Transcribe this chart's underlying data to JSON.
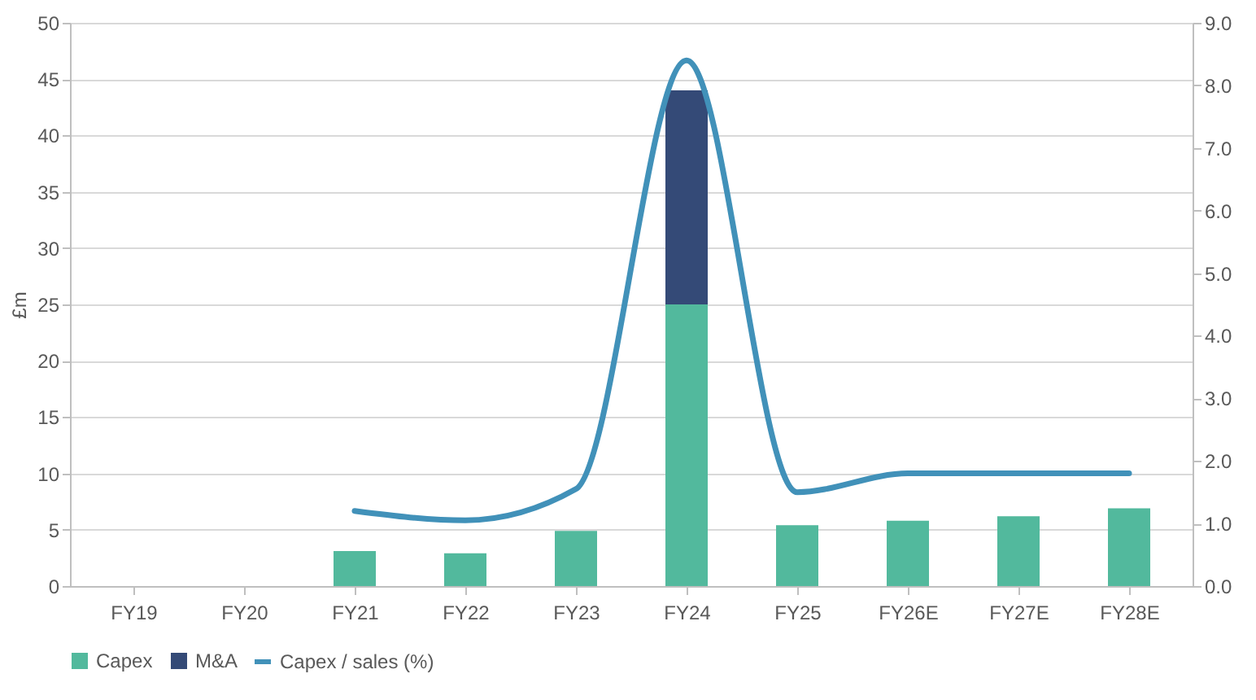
{
  "chart_data": {
    "type": "bar",
    "stacked": true,
    "ylabel": "£m",
    "categories": [
      "FY19",
      "FY20",
      "FY21",
      "FY22",
      "FY23",
      "FY24",
      "FY25",
      "FY26E",
      "FY27E",
      "FY28E"
    ],
    "series": [
      {
        "name": "Capex",
        "color": "#52b99d",
        "values": [
          0,
          0,
          3.1,
          2.9,
          4.9,
          25,
          5.4,
          5.8,
          6.2,
          6.9
        ]
      },
      {
        "name": "M&A",
        "color": "#344a77",
        "values": [
          null,
          null,
          null,
          null,
          null,
          19,
          null,
          null,
          null,
          null
        ]
      },
      {
        "name": "Capex  / sales (%)",
        "type": "line",
        "axis": "y2",
        "color": "#4191b9",
        "marker": "none",
        "line_style": "solid",
        "values": [
          null,
          null,
          1.2,
          1.05,
          1.55,
          8.4,
          1.5,
          1.8,
          1.8,
          1.8
        ]
      }
    ],
    "ylim": [
      0,
      50
    ],
    "yticks": [
      0,
      5,
      10,
      15,
      20,
      25,
      30,
      35,
      40,
      45,
      50
    ],
    "y2lim": [
      0,
      9
    ],
    "y2ticks": [
      {
        "value": 0,
        "label": "0.0"
      },
      {
        "value": 1,
        "label": "1.0"
      },
      {
        "value": 2,
        "label": "2.0"
      },
      {
        "value": 3,
        "label": "3.0"
      },
      {
        "value": 4,
        "label": "4.0"
      },
      {
        "value": 5,
        "label": "5.0"
      },
      {
        "value": 6,
        "label": "6.0"
      },
      {
        "value": 7,
        "label": "7.0"
      },
      {
        "value": 8,
        "label": "8.0"
      },
      {
        "value": 9,
        "label": "9.0"
      }
    ],
    "grid": "y",
    "legend": "bottom"
  }
}
